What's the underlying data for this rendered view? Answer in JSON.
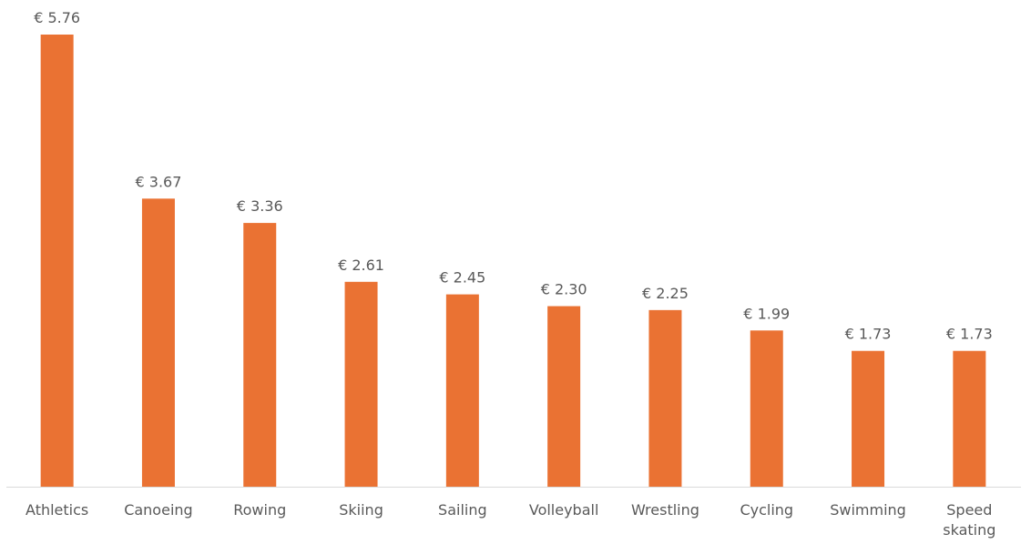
{
  "chart_data": {
    "type": "bar",
    "categories": [
      "Athletics",
      "Canoeing",
      "Rowing",
      "Skiing",
      "Sailing",
      "Volleyball",
      "Wrestling",
      "Cycling",
      "Swimming",
      "Speed skating"
    ],
    "values": [
      5.76,
      3.67,
      3.36,
      2.61,
      2.45,
      2.3,
      2.25,
      1.99,
      1.73,
      1.73
    ],
    "value_labels": [
      "€ 5.76",
      "€ 3.67",
      "€ 3.36",
      "€ 2.61",
      "€ 2.45",
      "€ 2.30",
      "€ 2.25",
      "€ 1.99",
      "€ 1.73",
      "€ 1.73"
    ],
    "color": "#ea7233"
  }
}
